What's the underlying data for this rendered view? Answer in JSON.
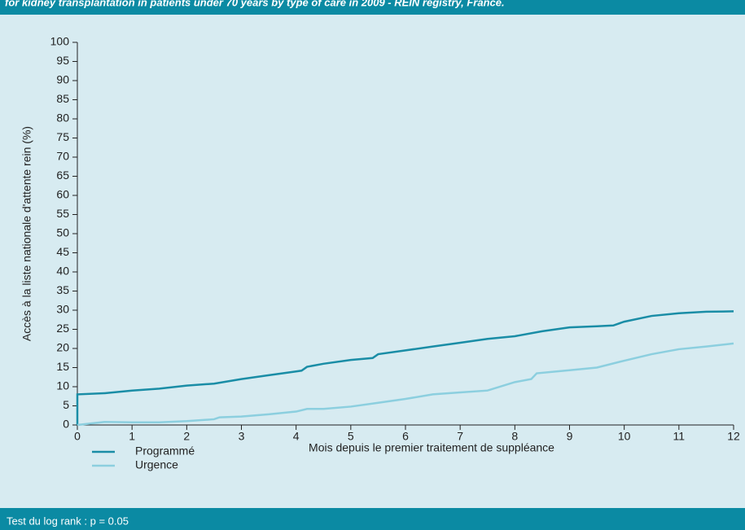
{
  "chart_data": {
    "type": "line",
    "title": "for kidney transplantation in patients under 70 years by type of care in 2009 - REIN registry, France.",
    "annotation": "Test du log rank : p = 0.05",
    "x_label": "Mois depuis le premier traitement de suppléance",
    "y_label": "Accès à la liste nationale d'attente rein (%)",
    "xlim": [
      0,
      12
    ],
    "xticks": [
      0,
      1,
      2,
      3,
      4,
      5,
      6,
      7,
      8,
      9,
      10,
      11,
      12
    ],
    "ylim": [
      0,
      100
    ],
    "yticks": [
      0,
      5,
      10,
      15,
      20,
      25,
      30,
      35,
      40,
      45,
      50,
      55,
      60,
      65,
      70,
      75,
      80,
      85,
      90,
      95,
      100
    ],
    "legend": "bottom-left",
    "series": [
      {
        "name": "Programmé",
        "color": "#1a8da6",
        "x": [
          0,
          0,
          0.5,
          1,
          1.5,
          2,
          2.5,
          3,
          3.5,
          4,
          4.1,
          4.2,
          4.5,
          5,
          5.4,
          5.5,
          6,
          6.5,
          7,
          7.5,
          8,
          8.5,
          9,
          9.5,
          9.8,
          10,
          10.5,
          11,
          11.5,
          12
        ],
        "values": [
          0,
          8,
          8.3,
          9,
          9.5,
          10.3,
          10.8,
          12,
          13,
          14,
          14.2,
          15.2,
          16,
          17,
          17.5,
          18.5,
          19.5,
          20.5,
          21.5,
          22.5,
          23.2,
          24.5,
          25.5,
          25.8,
          26,
          27,
          28.5,
          29.2,
          29.6,
          29.7
        ]
      },
      {
        "name": "Urgence",
        "color": "#8ccfdf",
        "x": [
          0,
          0.5,
          1,
          1.5,
          2,
          2.5,
          2.6,
          3,
          3.5,
          4,
          4.2,
          4.5,
          5,
          5.5,
          6,
          6.5,
          7,
          7.5,
          8,
          8.3,
          8.4,
          9,
          9.5,
          10,
          10.5,
          11,
          11.5,
          12
        ],
        "values": [
          0,
          0.8,
          0.7,
          0.7,
          1,
          1.5,
          2,
          2.2,
          2.8,
          3.5,
          4.2,
          4.2,
          4.8,
          5.8,
          6.8,
          8,
          8.5,
          9,
          11.2,
          12,
          13.5,
          14.3,
          15,
          16.8,
          18.5,
          19.8,
          20.5,
          21.3
        ]
      }
    ]
  }
}
